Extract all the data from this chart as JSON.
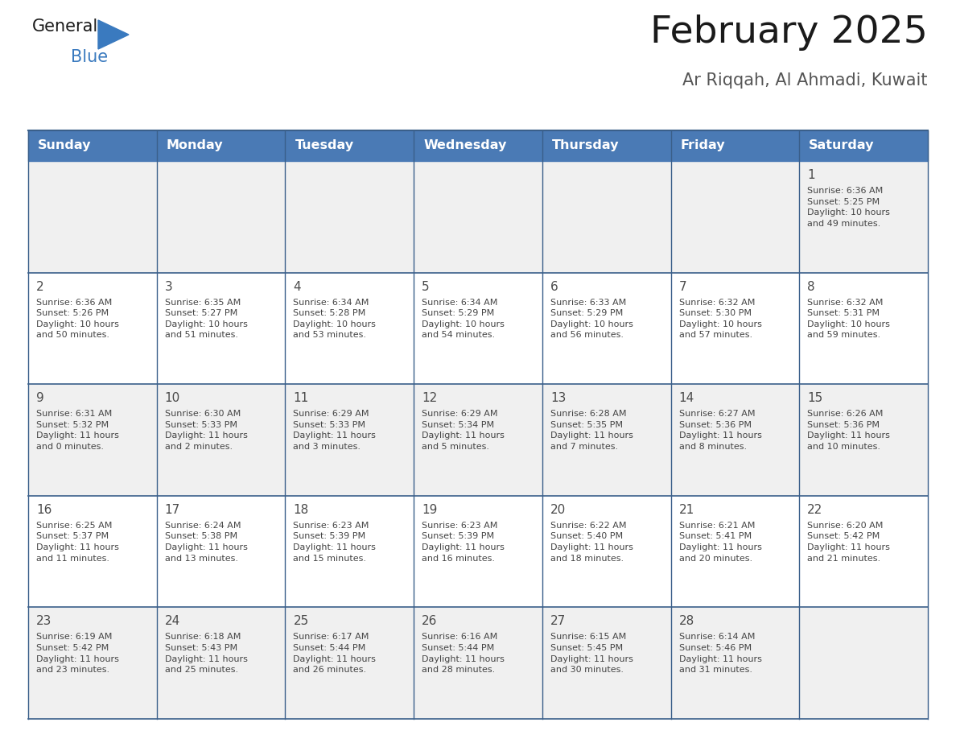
{
  "title": "February 2025",
  "subtitle": "Ar Riqqah, Al Ahmadi, Kuwait",
  "days_of_week": [
    "Sunday",
    "Monday",
    "Tuesday",
    "Wednesday",
    "Thursday",
    "Friday",
    "Saturday"
  ],
  "header_bg": "#4a7ab5",
  "header_text": "#FFFFFF",
  "header_font_size": 12,
  "day_num_color": "#4a4a4a",
  "cell_bg": "#FFFFFF",
  "cell_bg_alt": "#f0f0f0",
  "cell_text_color": "#444444",
  "grid_line_color": "#3a5f8a",
  "title_color": "#1a1a1a",
  "subtitle_color": "#555555",
  "logo_general_color": "#1a1a1a",
  "logo_blue_color": "#3a7abf",
  "logo_triangle_color": "#3a7abf",
  "weeks": [
    [
      {
        "day": null,
        "sunrise": null,
        "sunset": null,
        "daylight": null
      },
      {
        "day": null,
        "sunrise": null,
        "sunset": null,
        "daylight": null
      },
      {
        "day": null,
        "sunrise": null,
        "sunset": null,
        "daylight": null
      },
      {
        "day": null,
        "sunrise": null,
        "sunset": null,
        "daylight": null
      },
      {
        "day": null,
        "sunrise": null,
        "sunset": null,
        "daylight": null
      },
      {
        "day": null,
        "sunrise": null,
        "sunset": null,
        "daylight": null
      },
      {
        "day": 1,
        "sunrise": "6:36 AM",
        "sunset": "5:25 PM",
        "daylight": "10 hours\nand 49 minutes."
      }
    ],
    [
      {
        "day": 2,
        "sunrise": "6:36 AM",
        "sunset": "5:26 PM",
        "daylight": "10 hours\nand 50 minutes."
      },
      {
        "day": 3,
        "sunrise": "6:35 AM",
        "sunset": "5:27 PM",
        "daylight": "10 hours\nand 51 minutes."
      },
      {
        "day": 4,
        "sunrise": "6:34 AM",
        "sunset": "5:28 PM",
        "daylight": "10 hours\nand 53 minutes."
      },
      {
        "day": 5,
        "sunrise": "6:34 AM",
        "sunset": "5:29 PM",
        "daylight": "10 hours\nand 54 minutes."
      },
      {
        "day": 6,
        "sunrise": "6:33 AM",
        "sunset": "5:29 PM",
        "daylight": "10 hours\nand 56 minutes."
      },
      {
        "day": 7,
        "sunrise": "6:32 AM",
        "sunset": "5:30 PM",
        "daylight": "10 hours\nand 57 minutes."
      },
      {
        "day": 8,
        "sunrise": "6:32 AM",
        "sunset": "5:31 PM",
        "daylight": "10 hours\nand 59 minutes."
      }
    ],
    [
      {
        "day": 9,
        "sunrise": "6:31 AM",
        "sunset": "5:32 PM",
        "daylight": "11 hours\nand 0 minutes."
      },
      {
        "day": 10,
        "sunrise": "6:30 AM",
        "sunset": "5:33 PM",
        "daylight": "11 hours\nand 2 minutes."
      },
      {
        "day": 11,
        "sunrise": "6:29 AM",
        "sunset": "5:33 PM",
        "daylight": "11 hours\nand 3 minutes."
      },
      {
        "day": 12,
        "sunrise": "6:29 AM",
        "sunset": "5:34 PM",
        "daylight": "11 hours\nand 5 minutes."
      },
      {
        "day": 13,
        "sunrise": "6:28 AM",
        "sunset": "5:35 PM",
        "daylight": "11 hours\nand 7 minutes."
      },
      {
        "day": 14,
        "sunrise": "6:27 AM",
        "sunset": "5:36 PM",
        "daylight": "11 hours\nand 8 minutes."
      },
      {
        "day": 15,
        "sunrise": "6:26 AM",
        "sunset": "5:36 PM",
        "daylight": "11 hours\nand 10 minutes."
      }
    ],
    [
      {
        "day": 16,
        "sunrise": "6:25 AM",
        "sunset": "5:37 PM",
        "daylight": "11 hours\nand 11 minutes."
      },
      {
        "day": 17,
        "sunrise": "6:24 AM",
        "sunset": "5:38 PM",
        "daylight": "11 hours\nand 13 minutes."
      },
      {
        "day": 18,
        "sunrise": "6:23 AM",
        "sunset": "5:39 PM",
        "daylight": "11 hours\nand 15 minutes."
      },
      {
        "day": 19,
        "sunrise": "6:23 AM",
        "sunset": "5:39 PM",
        "daylight": "11 hours\nand 16 minutes."
      },
      {
        "day": 20,
        "sunrise": "6:22 AM",
        "sunset": "5:40 PM",
        "daylight": "11 hours\nand 18 minutes."
      },
      {
        "day": 21,
        "sunrise": "6:21 AM",
        "sunset": "5:41 PM",
        "daylight": "11 hours\nand 20 minutes."
      },
      {
        "day": 22,
        "sunrise": "6:20 AM",
        "sunset": "5:42 PM",
        "daylight": "11 hours\nand 21 minutes."
      }
    ],
    [
      {
        "day": 23,
        "sunrise": "6:19 AM",
        "sunset": "5:42 PM",
        "daylight": "11 hours\nand 23 minutes."
      },
      {
        "day": 24,
        "sunrise": "6:18 AM",
        "sunset": "5:43 PM",
        "daylight": "11 hours\nand 25 minutes."
      },
      {
        "day": 25,
        "sunrise": "6:17 AM",
        "sunset": "5:44 PM",
        "daylight": "11 hours\nand 26 minutes."
      },
      {
        "day": 26,
        "sunrise": "6:16 AM",
        "sunset": "5:44 PM",
        "daylight": "11 hours\nand 28 minutes."
      },
      {
        "day": 27,
        "sunrise": "6:15 AM",
        "sunset": "5:45 PM",
        "daylight": "11 hours\nand 30 minutes."
      },
      {
        "day": 28,
        "sunrise": "6:14 AM",
        "sunset": "5:46 PM",
        "daylight": "11 hours\nand 31 minutes."
      },
      {
        "day": null,
        "sunrise": null,
        "sunset": null,
        "daylight": null
      }
    ]
  ]
}
